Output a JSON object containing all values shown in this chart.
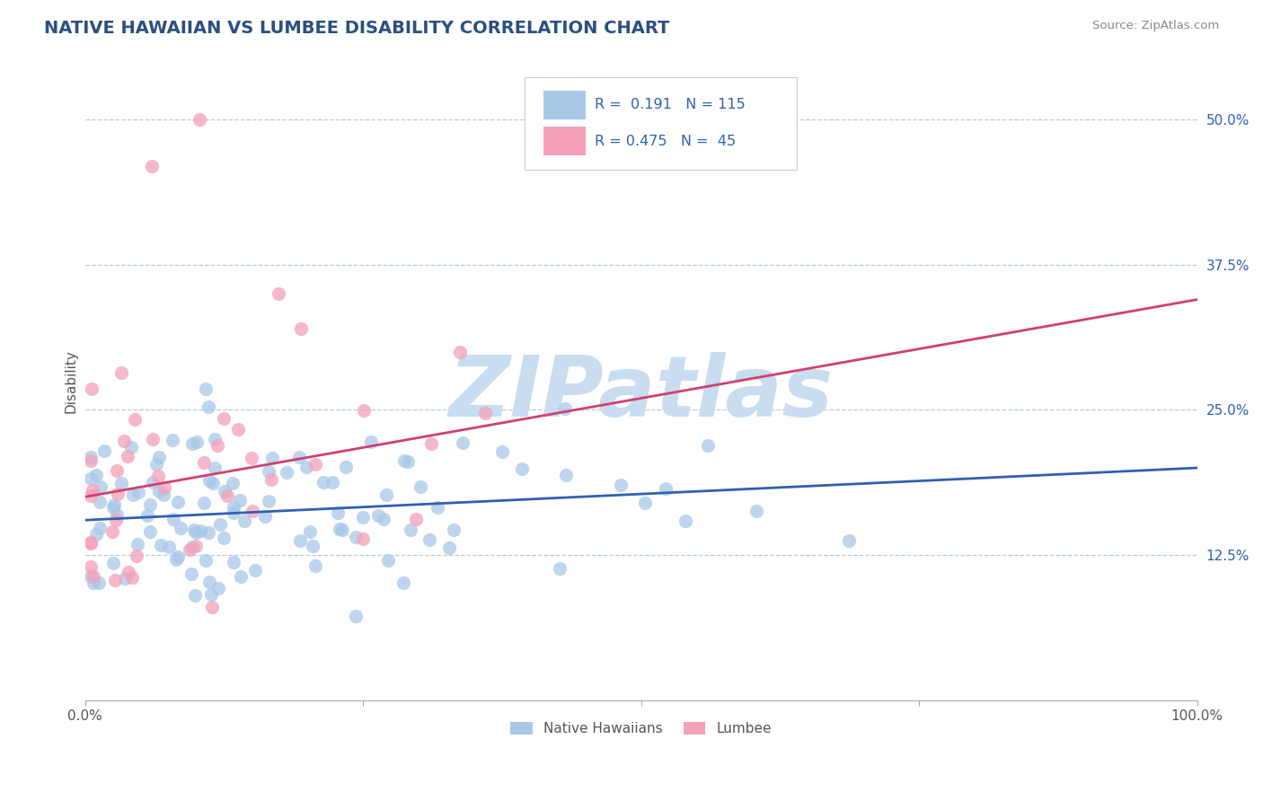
{
  "title": "NATIVE HAWAIIAN VS LUMBEE DISABILITY CORRELATION CHART",
  "source": "Source: ZipAtlas.com",
  "ylabel": "Disability",
  "xlim": [
    0.0,
    1.0
  ],
  "ylim": [
    0.0,
    0.55
  ],
  "y_ticks": [
    0.125,
    0.25,
    0.375,
    0.5
  ],
  "y_tick_labels": [
    "12.5%",
    "25.0%",
    "37.5%",
    "50.0%"
  ],
  "native_R": 0.191,
  "native_N": 115,
  "lumbee_R": 0.475,
  "lumbee_N": 45,
  "native_color": "#a8c8e8",
  "lumbee_color": "#f4a0b8",
  "native_line_color": "#3060b0",
  "lumbee_line_color": "#d04070",
  "background_color": "#ffffff",
  "grid_color": "#b8ccd8",
  "watermark_color": "#c8ddef",
  "native_line_start_y": 0.155,
  "native_line_end_y": 0.2,
  "lumbee_line_start_y": 0.175,
  "lumbee_line_end_y": 0.345
}
